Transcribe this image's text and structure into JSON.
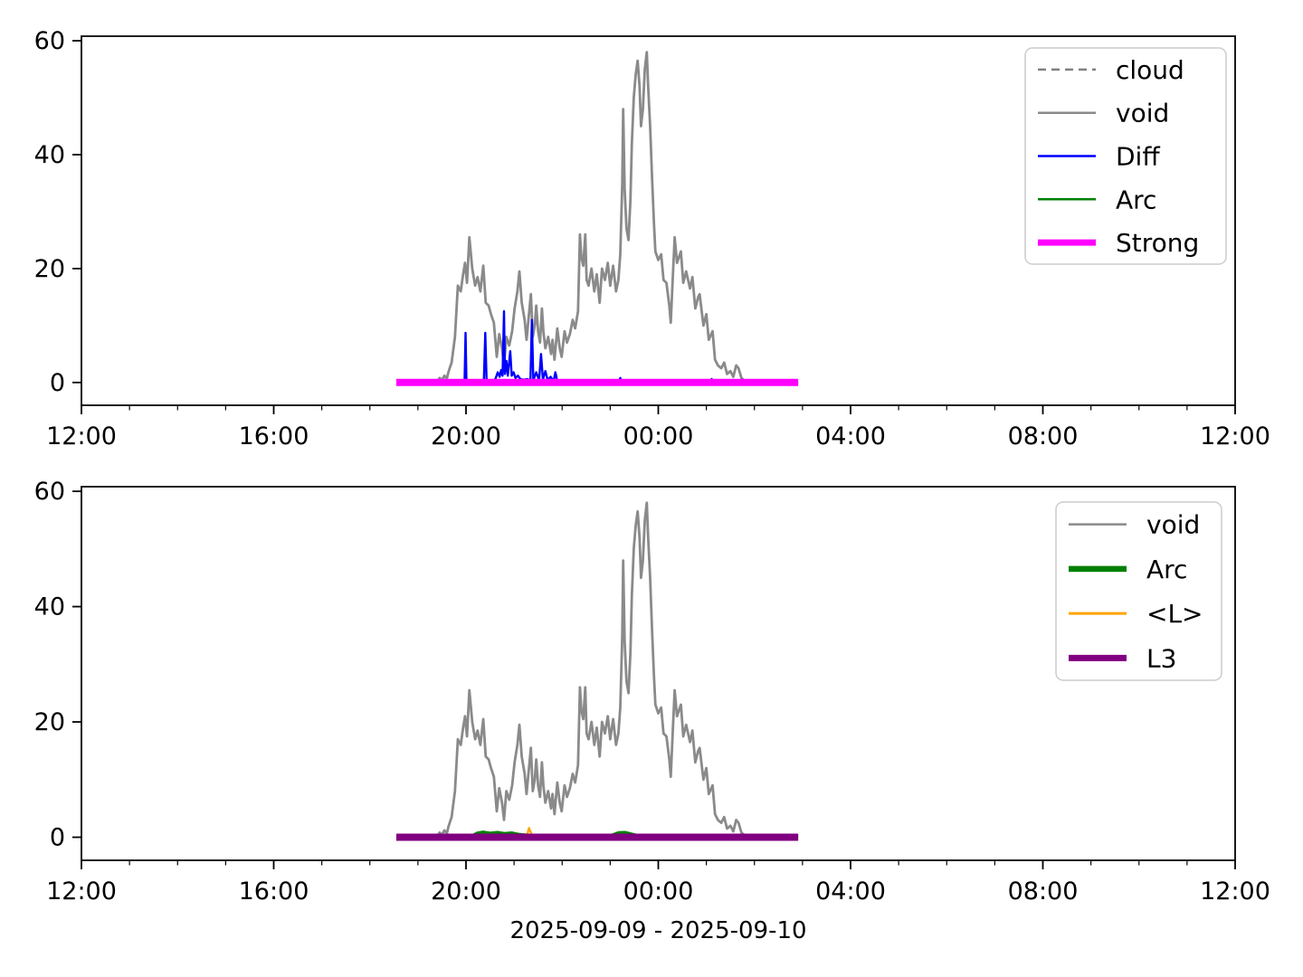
{
  "figure": {
    "background": "#ffffff",
    "text_color": "#000000",
    "spine_color": "#000000",
    "legend_border_color": "#cccccc"
  },
  "shared_series": {
    "void": [
      [
        7.3,
        0
      ],
      [
        7.35,
        0.4
      ],
      [
        7.4,
        0.2
      ],
      [
        7.45,
        0.8
      ],
      [
        7.5,
        0.4
      ],
      [
        7.55,
        1.2
      ],
      [
        7.6,
        0.7
      ],
      [
        7.64,
        2
      ],
      [
        7.7,
        3.5
      ],
      [
        7.77,
        8
      ],
      [
        7.83,
        17
      ],
      [
        7.89,
        16
      ],
      [
        7.94,
        19
      ],
      [
        7.98,
        21
      ],
      [
        8.02,
        17.5
      ],
      [
        8.07,
        25.5
      ],
      [
        8.13,
        20
      ],
      [
        8.19,
        17
      ],
      [
        8.24,
        18.5
      ],
      [
        8.3,
        16
      ],
      [
        8.36,
        20.5
      ],
      [
        8.41,
        14
      ],
      [
        8.47,
        13.5
      ],
      [
        8.52,
        12
      ],
      [
        8.58,
        10.5
      ],
      [
        8.64,
        4.5
      ],
      [
        8.69,
        8.5
      ],
      [
        8.75,
        6
      ],
      [
        8.79,
        3
      ],
      [
        8.84,
        8
      ],
      [
        8.9,
        6.5
      ],
      [
        8.96,
        9
      ],
      [
        9.01,
        13
      ],
      [
        9.07,
        16
      ],
      [
        9.11,
        19.5
      ],
      [
        9.16,
        14
      ],
      [
        9.22,
        11
      ],
      [
        9.26,
        7.5
      ],
      [
        9.31,
        12
      ],
      [
        9.35,
        15.5
      ],
      [
        9.39,
        8
      ],
      [
        9.43,
        10
      ],
      [
        9.46,
        13.5
      ],
      [
        9.5,
        9
      ],
      [
        9.54,
        7
      ],
      [
        9.58,
        13
      ],
      [
        9.61,
        9
      ],
      [
        9.65,
        6
      ],
      [
        9.71,
        8
      ],
      [
        9.77,
        5
      ],
      [
        9.8,
        7.5
      ],
      [
        9.84,
        4
      ],
      [
        9.9,
        9.5
      ],
      [
        9.95,
        6
      ],
      [
        9.99,
        4.5
      ],
      [
        10.05,
        9
      ],
      [
        10.1,
        7
      ],
      [
        10.16,
        8.5
      ],
      [
        10.22,
        11
      ],
      [
        10.27,
        9.5
      ],
      [
        10.33,
        12.5
      ],
      [
        10.37,
        26
      ],
      [
        10.4,
        22
      ],
      [
        10.44,
        20.5
      ],
      [
        10.48,
        26
      ],
      [
        10.51,
        18
      ],
      [
        10.55,
        17
      ],
      [
        10.61,
        20
      ],
      [
        10.67,
        16
      ],
      [
        10.72,
        19
      ],
      [
        10.78,
        14
      ],
      [
        10.83,
        20
      ],
      [
        10.89,
        18
      ],
      [
        10.95,
        21
      ],
      [
        11.0,
        17
      ],
      [
        11.06,
        20.5
      ],
      [
        11.12,
        16
      ],
      [
        11.17,
        18
      ],
      [
        11.21,
        22.5
      ],
      [
        11.25,
        35
      ],
      [
        11.27,
        48
      ],
      [
        11.3,
        34
      ],
      [
        11.34,
        27
      ],
      [
        11.38,
        25
      ],
      [
        11.42,
        32
      ],
      [
        11.45,
        42
      ],
      [
        11.49,
        50
      ],
      [
        11.53,
        54
      ],
      [
        11.57,
        56.5
      ],
      [
        11.61,
        52
      ],
      [
        11.64,
        45
      ],
      [
        11.68,
        48
      ],
      [
        11.72,
        55
      ],
      [
        11.76,
        58
      ],
      [
        11.79,
        52
      ],
      [
        11.83,
        45
      ],
      [
        11.87,
        36
      ],
      [
        11.91,
        28
      ],
      [
        11.94,
        23
      ],
      [
        12.0,
        21.5
      ],
      [
        12.06,
        22.5
      ],
      [
        12.11,
        18
      ],
      [
        12.17,
        17.5
      ],
      [
        12.23,
        13.5
      ],
      [
        12.26,
        10.5
      ],
      [
        12.3,
        18
      ],
      [
        12.34,
        25.5
      ],
      [
        12.39,
        21
      ],
      [
        12.47,
        23
      ],
      [
        12.52,
        17.5
      ],
      [
        12.58,
        19.5
      ],
      [
        12.66,
        16.5
      ],
      [
        12.71,
        18.5
      ],
      [
        12.77,
        13
      ],
      [
        12.83,
        15
      ],
      [
        12.86,
        15.5
      ],
      [
        12.94,
        10
      ],
      [
        13.0,
        12
      ],
      [
        13.05,
        7.5
      ],
      [
        13.13,
        9
      ],
      [
        13.18,
        4
      ],
      [
        13.24,
        3
      ],
      [
        13.31,
        2.5
      ],
      [
        13.37,
        3.5
      ],
      [
        13.43,
        1.5
      ],
      [
        13.5,
        2
      ],
      [
        13.56,
        1
      ],
      [
        13.62,
        3
      ],
      [
        13.67,
        2.5
      ],
      [
        13.73,
        0.8
      ],
      [
        13.8,
        0.3
      ],
      [
        13.9,
        0.1
      ],
      [
        13.95,
        0
      ]
    ]
  },
  "chart_data": [
    {
      "type": "line",
      "subplot": "top",
      "x_axis": {
        "range_hours": [
          0,
          24
        ],
        "tick_hours": [
          0,
          4,
          8,
          12,
          16,
          20,
          24
        ],
        "tick_labels": [
          "12:00",
          "16:00",
          "20:00",
          "00:00",
          "04:00",
          "08:00",
          "12:00"
        ],
        "minor_tick_every_hours": 1
      },
      "y_axis": {
        "ticks": [
          0,
          20,
          40,
          60
        ],
        "lim": [
          -4,
          60.8
        ]
      },
      "legend": {
        "position": "upper right",
        "entries": [
          {
            "label": "cloud",
            "color": "#808080",
            "lw": 2.5,
            "dash": true
          },
          {
            "label": "void",
            "color": "#8a8a8a",
            "lw": 2.5,
            "dash": false
          },
          {
            "label": "Diff",
            "color": "#0000ff",
            "lw": 2.5,
            "dash": false
          },
          {
            "label": "Arc",
            "color": "#008000",
            "lw": 2.5,
            "dash": false
          },
          {
            "label": "Strong",
            "color": "#ff00ff",
            "lw": 7,
            "dash": false
          }
        ]
      },
      "series": [
        {
          "name": "cloud",
          "color": "#808080",
          "lw": 2.5,
          "dash": true,
          "points": [
            [
              6.55,
              0
            ],
            [
              14.91,
              0
            ]
          ]
        },
        {
          "name": "void",
          "color": "#8a8a8a",
          "lw": 2.8,
          "dash": false,
          "points_ref": "void"
        },
        {
          "name": "Diff",
          "color": "#0000ff",
          "lw": 2.4,
          "dash": false,
          "points": [
            [
              6.55,
              0
            ],
            [
              7.85,
              0
            ],
            [
              7.97,
              0.1
            ],
            [
              7.99,
              8.7
            ],
            [
              8.01,
              0.1
            ],
            [
              8.37,
              0.1
            ],
            [
              8.4,
              8.7
            ],
            [
              8.43,
              0.1
            ],
            [
              8.58,
              0.2
            ],
            [
              8.62,
              0.8
            ],
            [
              8.66,
              1.8
            ],
            [
              8.7,
              1.0
            ],
            [
              8.73,
              2.2
            ],
            [
              8.76,
              1.2
            ],
            [
              8.79,
              12.5
            ],
            [
              8.81,
              1.5
            ],
            [
              8.84,
              3.8
            ],
            [
              8.87,
              1.2
            ],
            [
              8.92,
              5.5
            ],
            [
              8.95,
              1.2
            ],
            [
              8.99,
              1.8
            ],
            [
              9.03,
              0.8
            ],
            [
              9.08,
              1.2
            ],
            [
              9.13,
              0.6
            ],
            [
              9.2,
              0.5
            ],
            [
              9.28,
              0.6
            ],
            [
              9.34,
              0.3
            ],
            [
              9.37,
              11
            ],
            [
              9.4,
              0.4
            ],
            [
              9.46,
              1.8
            ],
            [
              9.52,
              0.4
            ],
            [
              9.56,
              5
            ],
            [
              9.6,
              0.5
            ],
            [
              9.65,
              2
            ],
            [
              9.7,
              0.4
            ],
            [
              9.76,
              1
            ],
            [
              9.82,
              0.2
            ],
            [
              9.86,
              1.8
            ],
            [
              9.9,
              0.2
            ],
            [
              10.05,
              0.1
            ],
            [
              11.18,
              0.1
            ],
            [
              11.21,
              0.8
            ],
            [
              11.24,
              0.1
            ],
            [
              13.08,
              0.1
            ],
            [
              13.11,
              0.6
            ],
            [
              13.14,
              0.1
            ],
            [
              14.91,
              0
            ]
          ]
        },
        {
          "name": "Arc",
          "color": "#008000",
          "lw": 2.4,
          "dash": false,
          "points": [
            [
              6.55,
              0
            ],
            [
              14.91,
              0
            ]
          ]
        },
        {
          "name": "Strong",
          "color": "#ff00ff",
          "lw": 8,
          "dash": false,
          "points": [
            [
              6.55,
              0
            ],
            [
              14.91,
              0
            ]
          ]
        }
      ]
    },
    {
      "type": "line",
      "subplot": "bottom",
      "xlabel": "2025-09-09 - 2025-09-10",
      "x_axis": {
        "range_hours": [
          0,
          24
        ],
        "tick_hours": [
          0,
          4,
          8,
          12,
          16,
          20,
          24
        ],
        "tick_labels": [
          "12:00",
          "16:00",
          "20:00",
          "00:00",
          "04:00",
          "08:00",
          "12:00"
        ],
        "minor_tick_every_hours": 1
      },
      "y_axis": {
        "ticks": [
          0,
          20,
          40,
          60
        ],
        "lim": [
          -4,
          60.8
        ]
      },
      "legend": {
        "position": "upper right",
        "entries": [
          {
            "label": "void",
            "color": "#8a8a8a",
            "lw": 2.5,
            "dash": false
          },
          {
            "label": "Arc",
            "color": "#008000",
            "lw": 6.5,
            "dash": false
          },
          {
            "label": "<L>",
            "color": "#ffa500",
            "lw": 3,
            "dash": false
          },
          {
            "label": "L3",
            "color": "#800080",
            "lw": 7,
            "dash": false
          }
        ]
      },
      "series": [
        {
          "name": "void",
          "color": "#8a8a8a",
          "lw": 2.8,
          "dash": false,
          "points_ref": "void"
        },
        {
          "name": "Arc",
          "color": "#008000",
          "lw": 6.5,
          "dash": false,
          "points": [
            [
              6.55,
              0
            ],
            [
              8.15,
              0.1
            ],
            [
              8.25,
              0.5
            ],
            [
              8.35,
              0.65
            ],
            [
              8.5,
              0.45
            ],
            [
              8.65,
              0.6
            ],
            [
              8.8,
              0.4
            ],
            [
              8.95,
              0.5
            ],
            [
              9.1,
              0.25
            ],
            [
              9.3,
              0.1
            ],
            [
              11.05,
              0.15
            ],
            [
              11.18,
              0.55
            ],
            [
              11.3,
              0.6
            ],
            [
              11.42,
              0.35
            ],
            [
              11.55,
              0.1
            ],
            [
              14.91,
              0
            ]
          ]
        },
        {
          "name": "<L>",
          "color": "#ffa500",
          "lw": 2.4,
          "dash": false,
          "points": [
            [
              6.55,
              0
            ],
            [
              9.2,
              0.05
            ],
            [
              9.27,
              0.3
            ],
            [
              9.31,
              1.6
            ],
            [
              9.36,
              0.6
            ],
            [
              9.42,
              0.15
            ],
            [
              9.55,
              0.05
            ],
            [
              14.91,
              0
            ]
          ]
        },
        {
          "name": "L3",
          "color": "#800080",
          "lw": 8,
          "dash": false,
          "points": [
            [
              6.55,
              0
            ],
            [
              14.91,
              0
            ]
          ]
        }
      ]
    }
  ]
}
